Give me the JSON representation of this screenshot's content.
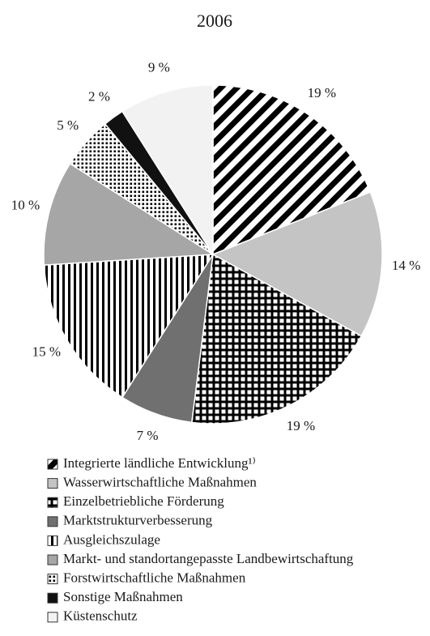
{
  "chart_data": {
    "type": "pie",
    "title": "2006",
    "categories": [
      "Integrierte ländliche Entwicklung¹⁾",
      "Wasserwirtschaftliche Maßnahmen",
      "Einzelbetriebliche Förderung",
      "Marktstrukturverbesserung",
      "Ausgleichszulage",
      "Markt- und standortangepasste Landbewirtschaftung",
      "Forstwirtschaftliche Maßnahmen",
      "Sonstige Maßnahmen",
      "Küstenschutz"
    ],
    "values": [
      19,
      14,
      19,
      7,
      15,
      10,
      5,
      2,
      9
    ],
    "value_labels": [
      "19 %",
      "14 %",
      "19 %",
      "7 %",
      "15 %",
      "10 %",
      "5 %",
      "2 %",
      "9 %"
    ],
    "colors": [
      "#000000",
      "#c4c4c4",
      "#000000",
      "#707070",
      "#000000",
      "#a6a6a6",
      "#000000",
      "#111111",
      "#f2f2f2"
    ],
    "patterns": [
      "diagonal",
      "solid",
      "grid",
      "solid",
      "vertical",
      "solid",
      "dots",
      "solid",
      "solid"
    ]
  }
}
